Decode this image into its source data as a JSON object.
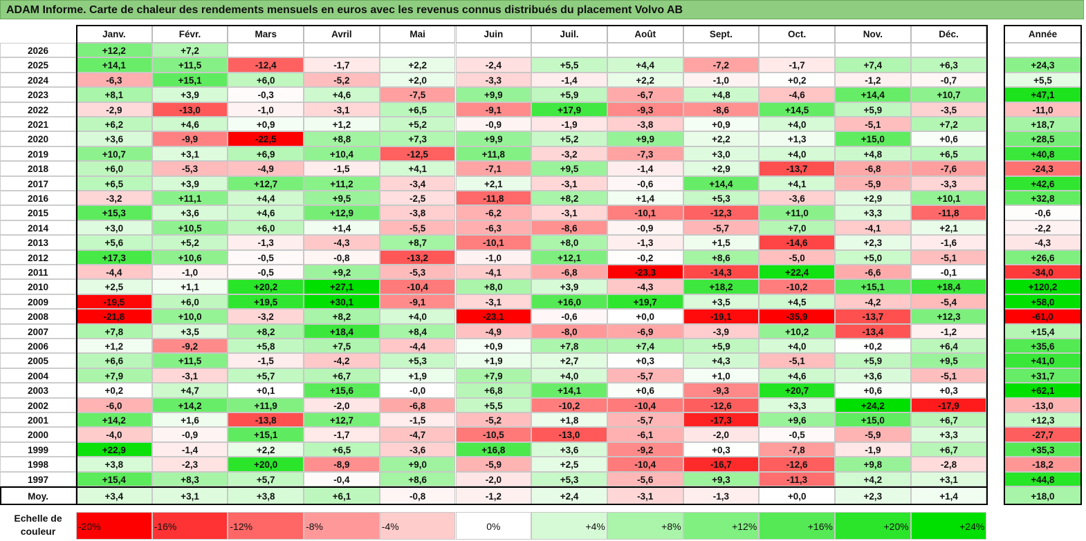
{
  "title": "ADAM Informe. Carte de chaleur des rendements mensuels en euros avec les revenus connus distribués du placement Volvo AB",
  "chart_data": {
    "type": "heatmap",
    "title": "ADAM Informe. Carte de chaleur des rendements mensuels en euros avec les revenus connus distribués du placement Volvo AB",
    "months": [
      "Janv.",
      "Févr.",
      "Mars",
      "Avril",
      "Mai",
      "Juin",
      "Juil.",
      "Août",
      "Sept.",
      "Oct.",
      "Nov.",
      "Déc."
    ],
    "year_header": "Année",
    "rows": [
      {
        "label": "2026",
        "values": [
          "+12,2",
          "+7,2",
          "",
          "",
          "",
          "",
          "",
          "",
          "",
          "",
          "",
          ""
        ],
        "year": ""
      },
      {
        "label": "2025",
        "values": [
          "+14,1",
          "+11,5",
          "-12,4",
          "-1,7",
          "+2,2",
          "-2,4",
          "+5,5",
          "+4,4",
          "-7,2",
          "-1,7",
          "+7,4",
          "+6,3"
        ],
        "year": "+24,3"
      },
      {
        "label": "2024",
        "values": [
          "-6,3",
          "+15,1",
          "+6,0",
          "-5,2",
          "+2,0",
          "-3,3",
          "-1,4",
          "+2,2",
          "-1,0",
          "+0,2",
          "-1,2",
          "-0,7"
        ],
        "year": "+5,5"
      },
      {
        "label": "2023",
        "values": [
          "+8,1",
          "+3,9",
          "-0,3",
          "+4,6",
          "-7,5",
          "+9,9",
          "+5,9",
          "-6,7",
          "+4,8",
          "-4,6",
          "+14,4",
          "+10,7"
        ],
        "year": "+47,1"
      },
      {
        "label": "2022",
        "values": [
          "-2,9",
          "-13,0",
          "-1,0",
          "-3,1",
          "+6,5",
          "-9,1",
          "+17,9",
          "-9,3",
          "-8,6",
          "+14,5",
          "+5,9",
          "-3,5"
        ],
        "year": "-11,0"
      },
      {
        "label": "2021",
        "values": [
          "+6,2",
          "+4,6",
          "+0,9",
          "+1,2",
          "+5,2",
          "-0,9",
          "-1,9",
          "-3,8",
          "+0,9",
          "+4,0",
          "-5,1",
          "+7,2"
        ],
        "year": "+18,7"
      },
      {
        "label": "2020",
        "values": [
          "+3,6",
          "-9,9",
          "-22,5",
          "+8,8",
          "+7,3",
          "+9,9",
          "+5,2",
          "+9,9",
          "+2,2",
          "+1,3",
          "+15,0",
          "+0,6"
        ],
        "year": "+28,5"
      },
      {
        "label": "2019",
        "values": [
          "+10,7",
          "+3,1",
          "+6,9",
          "+10,4",
          "-12,5",
          "+11,8",
          "-3,2",
          "-7,3",
          "+3,0",
          "+4,0",
          "+4,8",
          "+6,5"
        ],
        "year": "+40,8"
      },
      {
        "label": "2018",
        "values": [
          "+6,0",
          "-5,3",
          "-4,9",
          "-1,5",
          "+4,1",
          "-7,1",
          "+9,5",
          "-1,4",
          "+2,9",
          "-13,7",
          "-6,8",
          "-7,6"
        ],
        "year": "-24,3"
      },
      {
        "label": "2017",
        "values": [
          "+6,5",
          "+3,9",
          "+12,7",
          "+11,2",
          "-3,4",
          "+2,1",
          "-3,1",
          "-0,6",
          "+14,4",
          "+4,1",
          "-5,9",
          "-3,3"
        ],
        "year": "+42,6"
      },
      {
        "label": "2016",
        "values": [
          "-3,2",
          "+11,1",
          "+4,4",
          "+9,5",
          "-2,5",
          "-11,8",
          "+8,2",
          "+1,4",
          "+5,3",
          "-3,6",
          "+2,9",
          "+10,1"
        ],
        "year": "+32,8"
      },
      {
        "label": "2015",
        "values": [
          "+15,3",
          "+3,6",
          "+4,6",
          "+12,9",
          "-3,8",
          "-6,2",
          "-3,1",
          "-10,1",
          "-12,3",
          "+11,0",
          "+3,3",
          "-11,8"
        ],
        "year": "-0,6"
      },
      {
        "label": "2014",
        "values": [
          "+3,0",
          "+10,5",
          "+6,0",
          "+1,4",
          "-5,5",
          "-6,3",
          "-8,6",
          "-0,9",
          "-5,7",
          "+7,0",
          "-4,1",
          "+2,1"
        ],
        "year": "-2,2"
      },
      {
        "label": "2013",
        "values": [
          "+5,6",
          "+5,2",
          "-1,3",
          "-4,3",
          "+8,7",
          "-10,1",
          "+8,0",
          "-1,3",
          "+1,5",
          "-14,6",
          "+2,3",
          "-1,6"
        ],
        "year": "-4,3"
      },
      {
        "label": "2012",
        "values": [
          "+17,3",
          "+10,6",
          "-0,5",
          "-0,8",
          "-13,2",
          "-1,0",
          "+12,1",
          "-0,2",
          "+8,6",
          "-5,0",
          "+5,0",
          "-5,1"
        ],
        "year": "+26,6"
      },
      {
        "label": "2011",
        "values": [
          "-4,4",
          "-1,0",
          "-0,5",
          "+9,2",
          "-5,3",
          "-4,1",
          "-6,8",
          "-23,3",
          "-14,3",
          "+22,4",
          "-6,6",
          "-0,1"
        ],
        "year": "-34,0"
      },
      {
        "label": "2010",
        "values": [
          "+2,5",
          "+1,1",
          "+20,2",
          "+27,1",
          "-10,4",
          "+8,0",
          "+3,9",
          "-4,3",
          "+18,2",
          "-10,2",
          "+15,1",
          "+18,4"
        ],
        "year": "+120,2"
      },
      {
        "label": "2009",
        "values": [
          "-19,5",
          "+6,0",
          "+19,5",
          "+30,1",
          "-9,1",
          "-3,1",
          "+16,0",
          "+19,7",
          "+3,5",
          "+4,5",
          "-4,2",
          "-5,4"
        ],
        "year": "+58,0"
      },
      {
        "label": "2008",
        "values": [
          "-21,8",
          "+10,0",
          "-3,2",
          "+8,2",
          "+4,0",
          "-23,1",
          "-0,6",
          "+0,0",
          "-19,1",
          "-35,9",
          "-13,7",
          "+12,3"
        ],
        "year": "-61,0"
      },
      {
        "label": "2007",
        "values": [
          "+7,8",
          "+3,5",
          "+8,2",
          "+18,4",
          "+8,4",
          "-4,9",
          "-8,0",
          "-6,9",
          "-3,9",
          "+10,2",
          "-13,4",
          "-1,2"
        ],
        "year": "+15,4"
      },
      {
        "label": "2006",
        "values": [
          "+1,2",
          "-9,2",
          "+5,8",
          "+7,5",
          "-4,4",
          "+0,9",
          "+7,8",
          "+7,4",
          "+5,9",
          "+4,0",
          "+0,2",
          "+6,4"
        ],
        "year": "+35,6"
      },
      {
        "label": "2005",
        "values": [
          "+6,6",
          "+11,5",
          "-1,5",
          "-4,2",
          "+5,3",
          "+1,9",
          "+2,7",
          "+0,3",
          "+4,3",
          "-5,1",
          "+5,9",
          "+9,5"
        ],
        "year": "+41,0"
      },
      {
        "label": "2004",
        "values": [
          "+7,9",
          "-3,1",
          "+5,7",
          "+6,7",
          "+1,9",
          "+7,9",
          "+4,0",
          "-5,7",
          "+1,0",
          "+4,6",
          "+3,6",
          "-5,1"
        ],
        "year": "+31,7"
      },
      {
        "label": "2003",
        "values": [
          "+0,2",
          "+4,7",
          "+0,1",
          "+15,6",
          "-0,0",
          "+6,8",
          "+14,1",
          "+0,6",
          "-9,3",
          "+20,7",
          "+0,6",
          "+0,3"
        ],
        "year": "+62,1"
      },
      {
        "label": "2002",
        "values": [
          "-6,0",
          "+14,2",
          "+11,9",
          "-2,0",
          "-6,8",
          "+5,5",
          "-10,2",
          "-10,4",
          "-12,6",
          "+3,3",
          "+24,2",
          "-17,9"
        ],
        "year": "-13,0"
      },
      {
        "label": "2001",
        "values": [
          "+14,2",
          "+1,6",
          "-13,8",
          "+12,7",
          "-1,5",
          "-5,2",
          "+1,8",
          "-5,7",
          "-17,3",
          "+9,6",
          "+15,0",
          "+6,7"
        ],
        "year": "+12,3"
      },
      {
        "label": "2000",
        "values": [
          "-4,0",
          "-0,9",
          "+15,1",
          "-1,7",
          "-4,7",
          "-10,5",
          "-13,0",
          "-6,1",
          "-2,0",
          "-0,5",
          "-5,9",
          "+3,3"
        ],
        "year": "-27,7"
      },
      {
        "label": "1999",
        "values": [
          "+22,9",
          "-1,4",
          "+2,2",
          "+6,5",
          "-3,6",
          "+16,8",
          "+3,6",
          "-9,2",
          "+0,3",
          "-7,8",
          "-1,9",
          "+6,7"
        ],
        "year": "+35,3"
      },
      {
        "label": "1998",
        "values": [
          "+3,8",
          "-2,3",
          "+20,0",
          "-8,9",
          "+9,0",
          "-5,9",
          "+2,5",
          "-10,4",
          "-16,7",
          "-12,6",
          "+9,8",
          "-2,8"
        ],
        "year": "-18,2"
      },
      {
        "label": "1997",
        "values": [
          "+15,4",
          "+8,3",
          "+5,7",
          "-0,4",
          "+8,6",
          "-2,0",
          "+5,3",
          "-5,6",
          "+9,3",
          "-11,3",
          "+4,2",
          "+3,1"
        ],
        "year": "+44,8"
      }
    ],
    "average": {
      "label": "Moy.",
      "values": [
        "+3,4",
        "+3,1",
        "+3,8",
        "+6,1",
        "-0,8",
        "-1,2",
        "+2,4",
        "-3,1",
        "-1,3",
        "+0,0",
        "+2,3",
        "+1,4"
      ],
      "year": "+18,0"
    },
    "scale": {
      "label_line1": "Echelle de",
      "label_line2": "couleur",
      "labels": [
        "-20%",
        "-16%",
        "-12%",
        "-8%",
        "-4%",
        "0%",
        "+4%",
        "+8%",
        "+12%",
        "+16%",
        "+20%",
        "+24%"
      ],
      "values": [
        -20,
        -16,
        -12,
        -8,
        -4,
        0,
        4,
        8,
        12,
        16,
        20,
        24
      ]
    },
    "color_scale": {
      "negative": "#ff0000",
      "neutral": "#ffffff",
      "positive": "#00e000",
      "min": -20,
      "max": 24
    }
  }
}
